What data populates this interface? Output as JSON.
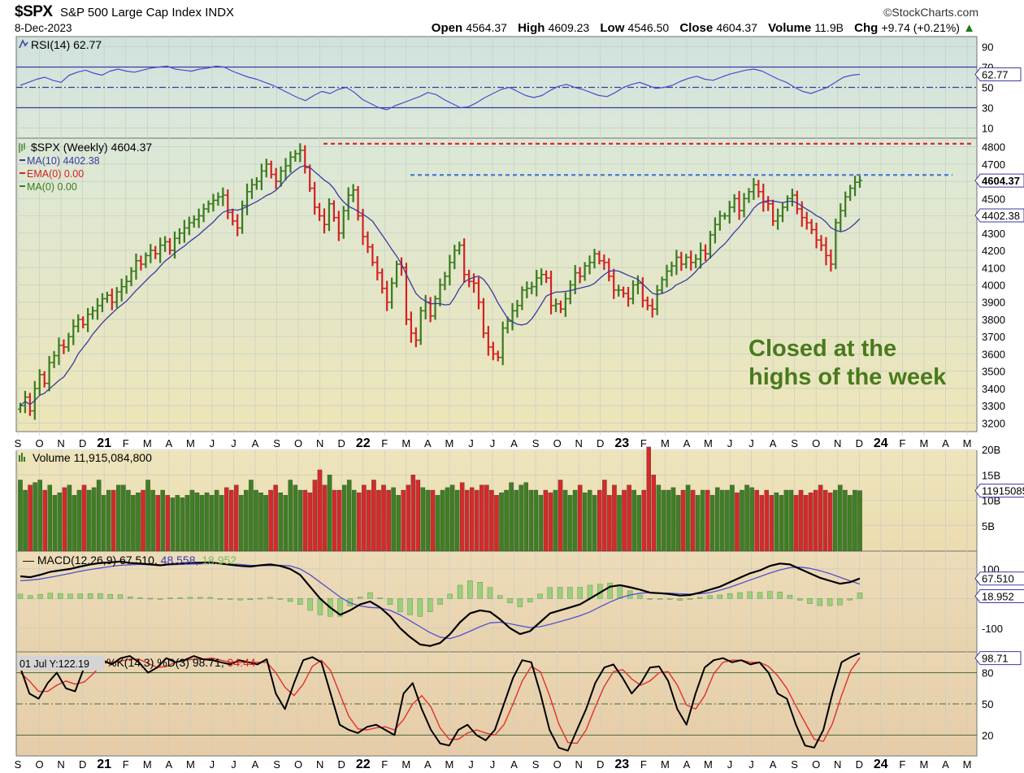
{
  "header": {
    "symbol": "$SPX",
    "name": "S&P 500 Large Cap Index",
    "exchange": "INDX",
    "date": "8-Dec-2023",
    "brand": "©StockCharts.com",
    "open_label": "Open",
    "open": "4564.37",
    "high_label": "High",
    "high": "4609.23",
    "low_label": "Low",
    "low": "4546.50",
    "close_label": "Close",
    "close": "4604.37",
    "volume_label": "Volume",
    "volume": "11.9B",
    "chg_label": "Chg",
    "chg": "+9.74 (+0.21%)",
    "chg_arrow": "▲"
  },
  "colors": {
    "up": "#3a7a1e",
    "down": "#d42020",
    "ma10": "#3a3aa0",
    "resistance": "#e02020",
    "support": "#4a7ad8",
    "annotation": "#4a7a1e"
  },
  "chart_data": [
    {
      "panel": "rsi",
      "type": "line",
      "legend": "RSI(14) 62.77",
      "last_value_tag": "62.77",
      "ylim": [
        0,
        100
      ],
      "yticks": [
        "90",
        "70",
        "50",
        "30",
        "10"
      ],
      "levels": [
        70,
        50,
        30
      ],
      "values": [
        52,
        55,
        58,
        60,
        57,
        55,
        62,
        65,
        67,
        64,
        62,
        66,
        68,
        66,
        65,
        67,
        69,
        70,
        71,
        68,
        67,
        66,
        68,
        69,
        71,
        70,
        66,
        63,
        60,
        58,
        55,
        52,
        48,
        44,
        40,
        37,
        42,
        46,
        44,
        48,
        50,
        45,
        38,
        34,
        30,
        28,
        32,
        35,
        38,
        41,
        45,
        43,
        38,
        34,
        30,
        31,
        35,
        40,
        44,
        48,
        50,
        46,
        42,
        40,
        42,
        47,
        51,
        53,
        50,
        48,
        45,
        42,
        41,
        45,
        50,
        53,
        55,
        52,
        49,
        50,
        52,
        56,
        59,
        61,
        58,
        57,
        60,
        63,
        65,
        67,
        68,
        66,
        62,
        58,
        55,
        50,
        46,
        44,
        47,
        50,
        55,
        60,
        62,
        62.77
      ]
    },
    {
      "panel": "price",
      "type": "ohlc",
      "legend": "$SPX (Weekly) 4604.37",
      "ma10_legend": "MA(10) 4402.38",
      "ema_legend": "EMA(0) 0.00",
      "ma0_legend": "MA(0) 0.00",
      "price_tag": "4604.37",
      "ma_tag": "4402.38",
      "ylim": [
        3150,
        4850
      ],
      "yticks": [
        "4800",
        "4700",
        "4600",
        "4500",
        "4400",
        "4300",
        "4200",
        "4100",
        "4000",
        "3900",
        "3800",
        "3700",
        "3600",
        "3500",
        "3400",
        "3300",
        "3200"
      ],
      "closes": [
        3300,
        3350,
        3270,
        3400,
        3480,
        3430,
        3550,
        3590,
        3650,
        3640,
        3700,
        3760,
        3800,
        3770,
        3830,
        3850,
        3880,
        3920,
        3940,
        3900,
        3960,
        3990,
        4020,
        4080,
        4140,
        4120,
        4170,
        4200,
        4180,
        4230,
        4250,
        4200,
        4270,
        4300,
        4330,
        4360,
        4380,
        4400,
        4440,
        4470,
        4490,
        4510,
        4520,
        4420,
        4370,
        4330,
        4460,
        4540,
        4580,
        4600,
        4660,
        4700,
        4640,
        4600,
        4660,
        4690,
        4740,
        4760,
        4780,
        4680,
        4560,
        4450,
        4400,
        4350,
        4470,
        4390,
        4300,
        4430,
        4520,
        4550,
        4400,
        4280,
        4220,
        4130,
        4070,
        3980,
        3900,
        4010,
        4120,
        4100,
        3800,
        3720,
        3680,
        3850,
        3900,
        3820,
        3920,
        4000,
        4050,
        4130,
        4200,
        4230,
        4060,
        4020,
        4010,
        3900,
        3720,
        3640,
        3600,
        3580,
        3750,
        3790,
        3850,
        3880,
        3970,
        3980,
        3990,
        4040,
        4060,
        4040,
        3880,
        3890,
        3860,
        3920,
        4000,
        4070,
        4050,
        4110,
        4130,
        4180,
        4140,
        4130,
        4050,
        3970,
        3970,
        3950,
        3920,
        4000,
        4010,
        3910,
        3880,
        3860,
        3970,
        4030,
        4080,
        4110,
        4160,
        4120,
        4160,
        4130,
        4150,
        4200,
        4180,
        4290,
        4350,
        4400,
        4400,
        4450,
        4500,
        4430,
        4500,
        4540,
        4580,
        4540,
        4480,
        4470,
        4370,
        4400,
        4450,
        4500,
        4520,
        4440,
        4390,
        4360,
        4320,
        4260,
        4230,
        4170,
        4120,
        4360,
        4430,
        4510,
        4560,
        4594.63,
        4604.37
      ]
    },
    {
      "panel": "volume",
      "type": "bar",
      "legend": "Volume 11,915,084,800",
      "tag": "11915085",
      "ylim": [
        0,
        20
      ],
      "yticks": [
        "20B",
        "15B",
        "10B",
        "5B"
      ],
      "values_b": [
        14,
        12,
        13,
        13.5,
        14,
        12,
        13,
        11,
        11.5,
        12.5,
        13,
        11,
        12,
        13,
        12,
        12.5,
        14,
        11,
        12,
        12,
        13,
        13,
        12,
        11,
        11.5,
        12,
        14,
        12,
        11,
        12,
        11,
        10.5,
        11,
        10.5,
        11,
        12,
        11.5,
        11,
        11.5,
        11,
        12,
        11,
        12.5,
        12,
        13,
        11,
        12,
        14,
        12,
        11.5,
        11,
        12,
        13,
        11.5,
        11,
        14,
        13,
        12,
        12,
        11.5,
        14,
        16,
        13,
        15,
        12,
        12,
        13,
        14,
        12,
        11.5,
        13,
        12,
        14,
        12,
        13,
        12,
        12.5,
        11,
        12,
        13,
        15,
        14,
        12.5,
        12,
        12,
        11,
        12,
        12.5,
        13,
        12,
        13.5,
        12,
        12.5,
        12,
        13,
        13,
        12,
        11,
        11.5,
        12,
        13.5,
        12,
        13,
        13.5,
        12,
        12,
        11,
        12,
        11.5,
        12,
        14,
        12,
        11,
        12,
        13,
        11.5,
        12,
        11,
        12,
        14,
        11,
        13,
        11,
        12,
        13,
        12,
        11,
        12,
        20.5,
        15,
        13,
        12,
        12,
        12.5,
        11,
        12,
        13,
        12,
        11,
        12,
        12,
        11,
        12.5,
        12,
        12,
        13,
        11.5,
        12,
        13,
        12.5,
        12,
        11,
        12,
        11,
        11.5,
        11,
        12,
        12,
        11,
        12,
        11,
        11.5,
        12,
        13,
        12,
        11.5,
        12,
        13,
        12,
        11,
        12,
        11.915
      ]
    },
    {
      "panel": "macd",
      "type": "line",
      "legend": "MACD(12,26,9) 67.510, 48.558, 18.952",
      "macd_label": "MACD(12,26,9)",
      "macd_value": "67.510",
      "signal_value": "48.558",
      "hist_value": "18.952",
      "macd_tag": "67.510",
      "hist_tag": "18.952",
      "ylim": [
        -180,
        160
      ],
      "yticks": [
        "100",
        "-100"
      ],
      "macd": [
        75,
        72,
        80,
        90,
        95,
        100,
        108,
        115,
        120,
        122,
        125,
        120,
        118,
        115,
        112,
        116,
        118,
        120,
        121,
        122,
        118,
        114,
        110,
        108,
        112,
        115,
        110,
        100,
        80,
        40,
        0,
        -30,
        -55,
        -40,
        -20,
        -10,
        -30,
        -60,
        -100,
        -130,
        -155,
        -160,
        -150,
        -120,
        -80,
        -50,
        -40,
        -45,
        -70,
        -100,
        -120,
        -110,
        -80,
        -50,
        -40,
        -30,
        -20,
        0,
        20,
        40,
        45,
        38,
        30,
        20,
        18,
        15,
        10,
        12,
        20,
        30,
        40,
        55,
        70,
        85,
        95,
        110,
        118,
        115,
        100,
        85,
        70,
        60,
        50,
        55,
        67.51
      ],
      "signal": [
        60,
        62,
        66,
        72,
        78,
        85,
        92,
        98,
        103,
        108,
        112,
        114,
        115,
        114,
        113,
        114,
        115,
        116,
        117,
        118,
        118,
        117,
        115,
        112,
        111,
        111,
        112,
        110,
        100,
        80,
        55,
        30,
        5,
        -15,
        -25,
        -30,
        -32,
        -40,
        -55,
        -75,
        -95,
        -115,
        -130,
        -135,
        -125,
        -110,
        -95,
        -82,
        -80,
        -85,
        -92,
        -98,
        -95,
        -87,
        -78,
        -68,
        -58,
        -45,
        -28,
        -12,
        2,
        12,
        18,
        20,
        19,
        18,
        16,
        15,
        16,
        20,
        28,
        38,
        50,
        62,
        74,
        86,
        96,
        104,
        106,
        102,
        94,
        84,
        72,
        60,
        48.558
      ],
      "hist": [
        15,
        10,
        14,
        18,
        17,
        15,
        16,
        17,
        17,
        14,
        13,
        6,
        3,
        1,
        -1,
        2,
        3,
        4,
        4,
        4,
        0,
        -3,
        -5,
        -4,
        1,
        4,
        -2,
        -10,
        -20,
        -40,
        -55,
        -60,
        -60,
        -25,
        5,
        20,
        2,
        -20,
        -45,
        -55,
        -60,
        -45,
        -20,
        15,
        45,
        60,
        55,
        37,
        10,
        -15,
        -28,
        -12,
        15,
        37,
        38,
        38,
        38,
        45,
        48,
        52,
        43,
        26,
        12,
        0,
        -1,
        -3,
        -6,
        -3,
        4,
        10,
        12,
        17,
        20,
        23,
        21,
        24,
        22,
        11,
        -6,
        -17,
        -24,
        -24,
        -22,
        -5,
        18.952
      ]
    },
    {
      "panel": "stochastic",
      "type": "line",
      "legend": "%K(14,3) %D(3) 98.71, 94.44",
      "k_label": "%K(14,3) %D(3)",
      "k_value": "98.71",
      "d_value": "94.44",
      "k_tag": "98.71",
      "hover_label": "01 Jul Y:122.19",
      "ylim": [
        0,
        100
      ],
      "yticks": [
        "80",
        "50",
        "20"
      ],
      "levels": [
        80,
        50,
        20
      ],
      "k": [
        85,
        60,
        55,
        70,
        80,
        65,
        62,
        85,
        90,
        92,
        88,
        94,
        96,
        90,
        80,
        85,
        94,
        90,
        92,
        96,
        93,
        92,
        90,
        88,
        92,
        90,
        88,
        93,
        60,
        45,
        70,
        92,
        95,
        90,
        60,
        30,
        25,
        22,
        28,
        30,
        25,
        20,
        60,
        70,
        45,
        25,
        12,
        10,
        25,
        30,
        20,
        15,
        25,
        50,
        75,
        92,
        90,
        60,
        25,
        8,
        5,
        25,
        45,
        70,
        85,
        88,
        75,
        60,
        70,
        85,
        86,
        72,
        45,
        30,
        60,
        85,
        92,
        94,
        90,
        92,
        88,
        90,
        80,
        60,
        55,
        30,
        10,
        8,
        25,
        60,
        90,
        95,
        98.71
      ],
      "d": [
        80,
        72,
        62,
        62,
        68,
        72,
        69,
        71,
        79,
        89,
        90,
        91,
        93,
        93,
        89,
        85,
        86,
        90,
        92,
        93,
        93,
        94,
        92,
        90,
        90,
        90,
        90,
        90,
        80,
        66,
        58,
        69,
        86,
        92,
        82,
        60,
        38,
        26,
        25,
        27,
        28,
        25,
        35,
        50,
        58,
        47,
        27,
        16,
        16,
        22,
        25,
        22,
        20,
        30,
        50,
        72,
        86,
        81,
        58,
        31,
        13,
        12,
        25,
        47,
        67,
        81,
        83,
        74,
        68,
        72,
        80,
        81,
        68,
        49,
        45,
        58,
        79,
        90,
        92,
        92,
        90,
        90,
        86,
        77,
        65,
        48,
        32,
        16,
        14,
        31,
        58,
        82,
        94.44
      ]
    }
  ],
  "xaxis": {
    "labels": [
      "S",
      "O",
      "N",
      "D",
      "21",
      "F",
      "M",
      "A",
      "M",
      "J",
      "J",
      "A",
      "S",
      "O",
      "N",
      "D",
      "22",
      "F",
      "M",
      "A",
      "M",
      "J",
      "J",
      "A",
      "S",
      "O",
      "N",
      "D",
      "23",
      "F",
      "M",
      "A",
      "M",
      "J",
      "J",
      "A",
      "S",
      "O",
      "N",
      "D",
      "24",
      "F",
      "M",
      "A",
      "M"
    ],
    "bold": [
      false,
      false,
      false,
      false,
      true,
      false,
      false,
      false,
      false,
      false,
      false,
      false,
      false,
      false,
      false,
      false,
      true,
      false,
      false,
      false,
      false,
      false,
      false,
      false,
      false,
      false,
      false,
      false,
      true,
      false,
      false,
      false,
      false,
      false,
      false,
      false,
      false,
      false,
      false,
      false,
      true,
      false,
      false,
      false,
      false
    ]
  },
  "annotation": {
    "line1": "Closed at the",
    "line2": "highs of the week"
  },
  "reference_lines": {
    "resistance": 4818,
    "support": 4637
  }
}
